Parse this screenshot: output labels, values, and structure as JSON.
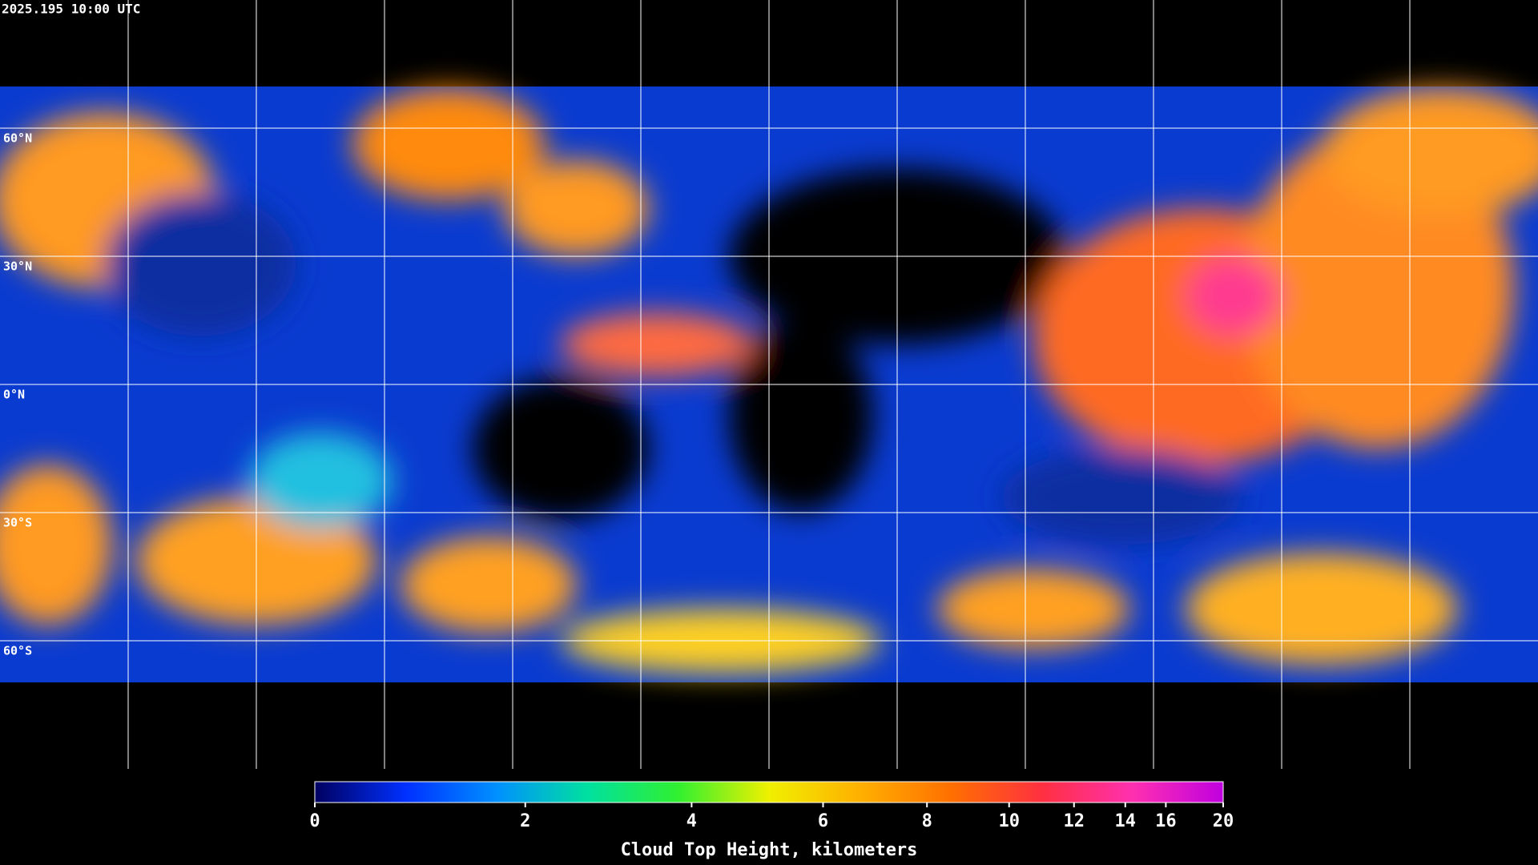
{
  "header": {
    "timestamp": "2025.195 10:00 UTC"
  },
  "map": {
    "latitudes": [
      {
        "value": 60,
        "label": "60°N"
      },
      {
        "value": 30,
        "label": "30°N"
      },
      {
        "value": 0,
        "label": "0°N"
      },
      {
        "value": -30,
        "label": "30°S"
      },
      {
        "value": -60,
        "label": "60°S"
      }
    ]
  },
  "colorbar": {
    "label": "Cloud Top Height, kilometers",
    "clim": [
      0,
      20
    ],
    "ticks": [
      0,
      2,
      4,
      6,
      8,
      10,
      12,
      14,
      16,
      20
    ],
    "colors": [
      "#000060",
      "#0030ff",
      "#0090ff",
      "#00e0a0",
      "#30f030",
      "#f0f000",
      "#ffb000",
      "#ff7000",
      "#ff3040",
      "#ff30b0",
      "#c000e0"
    ]
  }
}
